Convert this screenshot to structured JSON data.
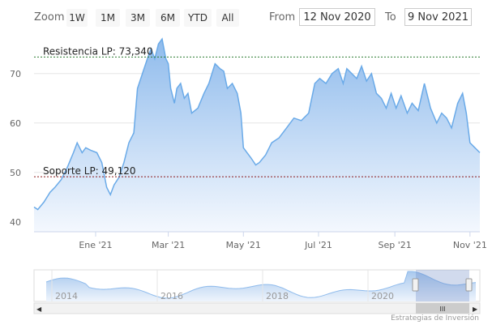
{
  "toolbar": {
    "zoom_label": "Zoom",
    "buttons": [
      "1W",
      "1M",
      "3M",
      "6M",
      "YTD",
      "All"
    ],
    "from_label": "From",
    "from_value": "12 Nov 2020",
    "to_label": "To",
    "to_value": "9 Nov 2021"
  },
  "credits": "Estrategias de Inversión",
  "colors": {
    "line": "#6aaae8",
    "fill_top": "#8fbbec",
    "fill_bottom": "#f4f8fe",
    "resistance": "#2e7d32",
    "support": "#8b1a1a"
  },
  "chart_data": {
    "type": "area",
    "x_start": "2020-11-12",
    "x_end": "2021-11-09",
    "xlim": [
      "2020-11-12",
      "2021-11-09"
    ],
    "ylim": [
      38,
      78
    ],
    "yticks": [
      40,
      50,
      60,
      70
    ],
    "xticks": [
      {
        "date": "2021-01-01",
        "label": "Ene '21"
      },
      {
        "date": "2021-03-01",
        "label": "Mar '21"
      },
      {
        "date": "2021-05-01",
        "label": "May '21"
      },
      {
        "date": "2021-07-01",
        "label": "Jul '21"
      },
      {
        "date": "2021-09-01",
        "label": "Sep '21"
      },
      {
        "date": "2021-11-01",
        "label": "Nov '21"
      }
    ],
    "grid": true,
    "series": [
      {
        "x": [
          "2020-11-12",
          "2020-11-15",
          "2020-11-20",
          "2020-11-25",
          "2020-11-29",
          "2020-12-04",
          "2020-12-09",
          "2020-12-14",
          "2020-12-17",
          "2020-12-21",
          "2020-12-24",
          "2020-12-28",
          "2021-01-02",
          "2021-01-06",
          "2021-01-10",
          "2021-01-13",
          "2021-01-16",
          "2021-01-20",
          "2021-01-24",
          "2021-01-28",
          "2021-02-01",
          "2021-02-04",
          "2021-02-08",
          "2021-02-12",
          "2021-02-15",
          "2021-02-18",
          "2021-02-21",
          "2021-02-24",
          "2021-02-27",
          "2021-03-01",
          "2021-03-03",
          "2021-03-06",
          "2021-03-08",
          "2021-03-11",
          "2021-03-14",
          "2021-03-17",
          "2021-03-20",
          "2021-03-25",
          "2021-03-30",
          "2021-04-03",
          "2021-04-08",
          "2021-04-12",
          "2021-04-15",
          "2021-04-18",
          "2021-04-22",
          "2021-04-26",
          "2021-04-29",
          "2021-05-01",
          "2021-05-04",
          "2021-05-07",
          "2021-05-11",
          "2021-05-14",
          "2021-05-19",
          "2021-05-24",
          "2021-05-30",
          "2021-06-05",
          "2021-06-11",
          "2021-06-17",
          "2021-06-23",
          "2021-06-28",
          "2021-07-02",
          "2021-07-07",
          "2021-07-12",
          "2021-07-17",
          "2021-07-21",
          "2021-07-24",
          "2021-07-28",
          "2021-08-01",
          "2021-08-05",
          "2021-08-09",
          "2021-08-13",
          "2021-08-17",
          "2021-08-21",
          "2021-08-25",
          "2021-08-29",
          "2021-09-02",
          "2021-09-06",
          "2021-09-11",
          "2021-09-15",
          "2021-09-20",
          "2021-09-25",
          "2021-09-30",
          "2021-10-05",
          "2021-10-09",
          "2021-10-13",
          "2021-10-17",
          "2021-10-22",
          "2021-10-26",
          "2021-10-29",
          "2021-11-01",
          "2021-11-05",
          "2021-11-07",
          "2021-11-09"
        ],
        "y": [
          43,
          42.5,
          44,
          46,
          47,
          48.5,
          51,
          54,
          56,
          54,
          55,
          54.5,
          54,
          52,
          47,
          45.5,
          47.5,
          49,
          52,
          56,
          58,
          67,
          70,
          73,
          75,
          73,
          76,
          77,
          73,
          72,
          67,
          64,
          67,
          68,
          65,
          66,
          62,
          63,
          66,
          68,
          72,
          71,
          70.5,
          67,
          68,
          66,
          62,
          55,
          54,
          53,
          51.5,
          52,
          53.5,
          56,
          57,
          59,
          61,
          60.5,
          62,
          68,
          69,
          68,
          70,
          71,
          68,
          71,
          70,
          69,
          71.5,
          68.5,
          70,
          66,
          65,
          63,
          66,
          63,
          65.5,
          62,
          64,
          62.5,
          68,
          63,
          60,
          62,
          61,
          59,
          64,
          66,
          62,
          56,
          55,
          54.5,
          54
        ]
      }
    ],
    "annotations": [
      {
        "label": "Resistencia LP: 73,340",
        "value": 73.34
      },
      {
        "label": "Soporte LP: 49,120",
        "value": 49.12
      }
    ]
  },
  "navigator": {
    "years": [
      "2014",
      "2016",
      "2018",
      "2020"
    ],
    "left_arrow": "◀",
    "right_arrow": "▶",
    "grip": "III"
  }
}
